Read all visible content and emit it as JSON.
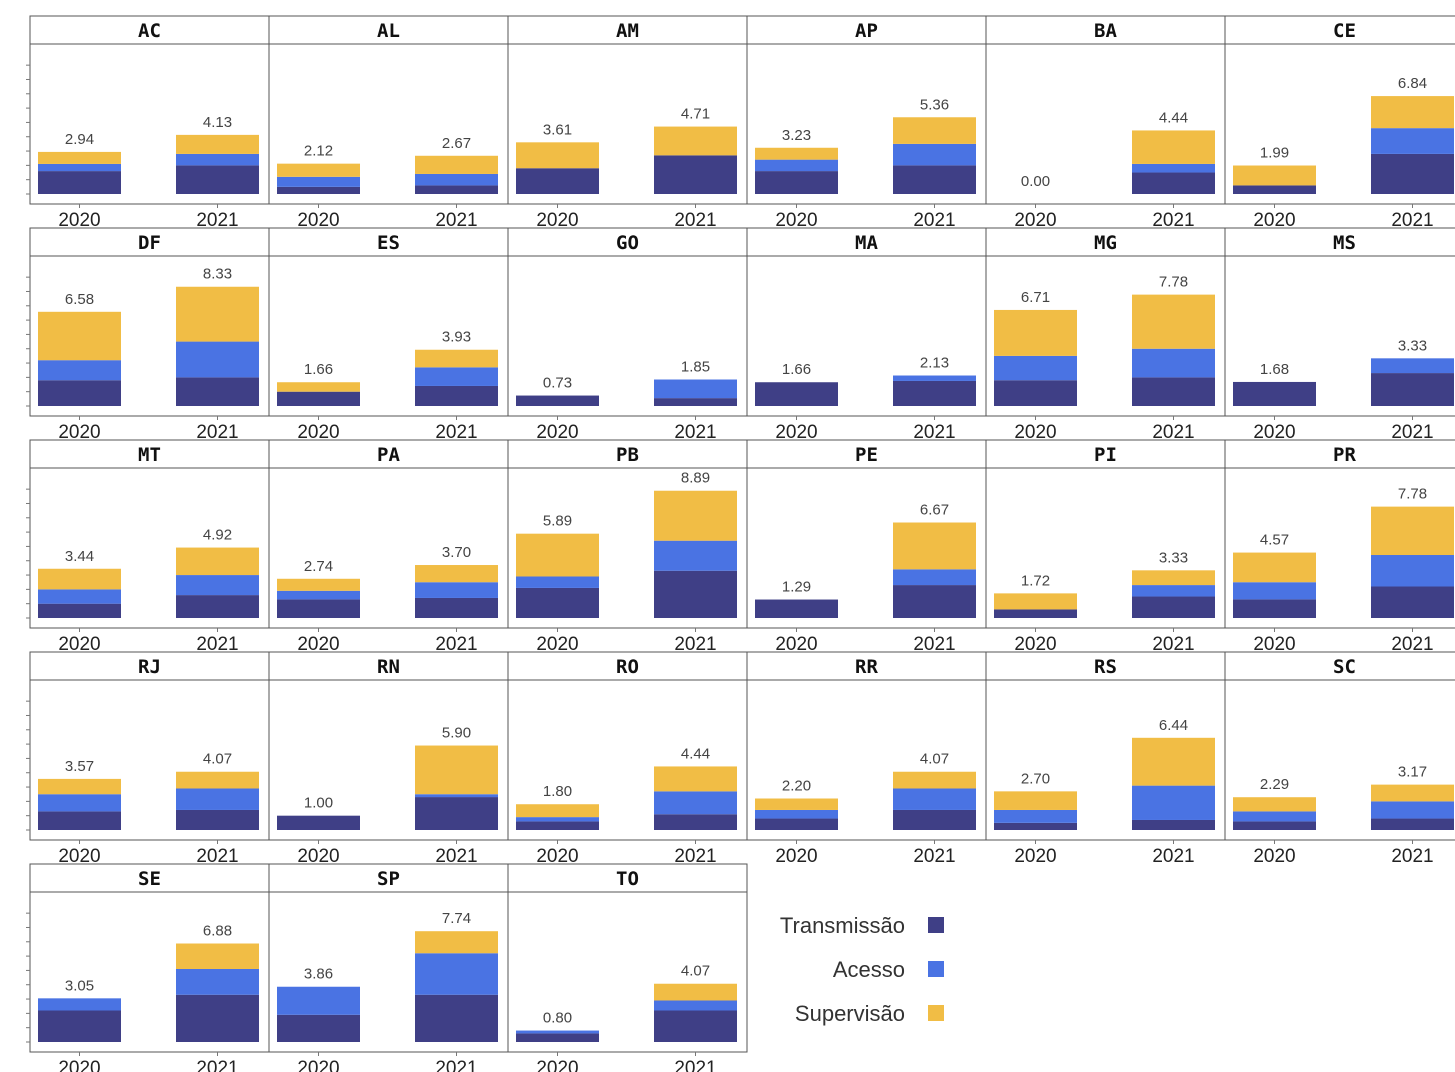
{
  "chart_data": {
    "type": "bar",
    "stacked": true,
    "facets_layout": "grid 6 columns x 5 rows",
    "x": [
      "2020",
      "2021"
    ],
    "ylim": [
      0,
      9.5
    ],
    "series_names": [
      "Transmissão",
      "Acesso",
      "Supervisão"
    ],
    "colors": {
      "Transmissão": "#3f3f86",
      "Acesso": "#4a73e3",
      "Supervisão": "#f1bd45"
    },
    "legend_position": "bottom-right",
    "facets": [
      {
        "name": "AC",
        "totals": [
          "2.94",
          "4.13"
        ],
        "transmissao": [
          1.6,
          2.0
        ],
        "acesso": [
          0.5,
          0.8
        ],
        "supervisao": [
          0.84,
          1.33
        ]
      },
      {
        "name": "AL",
        "totals": [
          "2.12",
          "2.67"
        ],
        "transmissao": [
          0.5,
          0.6
        ],
        "acesso": [
          0.7,
          0.8
        ],
        "supervisao": [
          0.92,
          1.27
        ]
      },
      {
        "name": "AM",
        "totals": [
          "3.61",
          "4.71"
        ],
        "transmissao": [
          1.8,
          2.7
        ],
        "acesso": [
          0.0,
          0.0
        ],
        "supervisao": [
          1.81,
          2.01
        ]
      },
      {
        "name": "AP",
        "totals": [
          "3.23",
          "5.36"
        ],
        "transmissao": [
          1.6,
          2.0
        ],
        "acesso": [
          0.8,
          1.5
        ],
        "supervisao": [
          0.83,
          1.86
        ]
      },
      {
        "name": "BA",
        "totals": [
          "0.00",
          "4.44"
        ],
        "transmissao": [
          0,
          1.5
        ],
        "acesso": [
          0,
          0.6
        ],
        "supervisao": [
          0,
          2.34
        ]
      },
      {
        "name": "CE",
        "totals": [
          "1.99",
          "6.84"
        ],
        "transmissao": [
          0.6,
          2.8
        ],
        "acesso": [
          0.0,
          1.8
        ],
        "supervisao": [
          1.39,
          2.24
        ]
      },
      {
        "name": "DF",
        "totals": [
          "6.58",
          "8.33"
        ],
        "transmissao": [
          1.8,
          2.0
        ],
        "acesso": [
          1.4,
          2.5
        ],
        "supervisao": [
          3.38,
          3.83
        ]
      },
      {
        "name": "ES",
        "totals": [
          "1.66",
          "3.93"
        ],
        "transmissao": [
          1.0,
          1.4
        ],
        "acesso": [
          0.0,
          1.3
        ],
        "supervisao": [
          0.66,
          1.23
        ]
      },
      {
        "name": "GO",
        "totals": [
          "0.73",
          "1.85"
        ],
        "transmissao": [
          0.73,
          0.55
        ],
        "acesso": [
          0.0,
          1.3
        ],
        "supervisao": [
          0,
          0
        ]
      },
      {
        "name": "MA",
        "totals": [
          "1.66",
          "2.13"
        ],
        "transmissao": [
          1.66,
          1.75
        ],
        "acesso": [
          0,
          0.38
        ],
        "supervisao": [
          0,
          0
        ]
      },
      {
        "name": "MG",
        "totals": [
          "6.71",
          "7.78"
        ],
        "transmissao": [
          1.8,
          2.0
        ],
        "acesso": [
          1.7,
          2.0
        ],
        "supervisao": [
          3.21,
          3.78
        ]
      },
      {
        "name": "MS",
        "totals": [
          "1.68",
          "3.33"
        ],
        "transmissao": [
          1.68,
          2.3
        ],
        "acesso": [
          0,
          1.03
        ],
        "supervisao": [
          0,
          0
        ]
      },
      {
        "name": "MT",
        "totals": [
          "3.44",
          "4.92"
        ],
        "transmissao": [
          1.0,
          1.6
        ],
        "acesso": [
          1.0,
          1.4
        ],
        "supervisao": [
          1.44,
          1.92
        ]
      },
      {
        "name": "PA",
        "totals": [
          "2.74",
          "3.70"
        ],
        "transmissao": [
          1.3,
          1.4
        ],
        "acesso": [
          0.6,
          1.1
        ],
        "supervisao": [
          0.84,
          1.2
        ]
      },
      {
        "name": "PB",
        "totals": [
          "5.89",
          "8.89"
        ],
        "transmissao": [
          2.1,
          3.3
        ],
        "acesso": [
          0.8,
          2.1
        ],
        "supervisao": [
          2.99,
          3.49
        ]
      },
      {
        "name": "PE",
        "totals": [
          "1.29",
          "6.67"
        ],
        "transmissao": [
          1.29,
          2.3
        ],
        "acesso": [
          0,
          1.1
        ],
        "supervisao": [
          0,
          3.27
        ]
      },
      {
        "name": "PI",
        "totals": [
          "1.72",
          "3.33"
        ],
        "transmissao": [
          0.6,
          1.5
        ],
        "acesso": [
          0,
          0.8
        ],
        "supervisao": [
          1.12,
          1.03
        ]
      },
      {
        "name": "PR",
        "totals": [
          "4.57",
          "7.78"
        ],
        "transmissao": [
          1.3,
          2.2
        ],
        "acesso": [
          1.2,
          2.2
        ],
        "supervisao": [
          2.07,
          3.38
        ]
      },
      {
        "name": "RJ",
        "totals": [
          "3.57",
          "4.07"
        ],
        "transmissao": [
          1.3,
          1.4
        ],
        "acesso": [
          1.2,
          1.5
        ],
        "supervisao": [
          1.07,
          1.17
        ]
      },
      {
        "name": "RN",
        "totals": [
          "1.00",
          "5.90"
        ],
        "transmissao": [
          1.0,
          2.3
        ],
        "acesso": [
          0,
          0.2
        ],
        "supervisao": [
          0,
          3.4
        ]
      },
      {
        "name": "RO",
        "totals": [
          "1.80",
          "4.44"
        ],
        "transmissao": [
          0.6,
          1.1
        ],
        "acesso": [
          0.3,
          1.6
        ],
        "supervisao": [
          0.9,
          1.74
        ]
      },
      {
        "name": "RR",
        "totals": [
          "2.20",
          "4.07"
        ],
        "transmissao": [
          0.8,
          1.4
        ],
        "acesso": [
          0.6,
          1.5
        ],
        "supervisao": [
          0.8,
          1.17
        ]
      },
      {
        "name": "RS",
        "totals": [
          "2.70",
          "6.44"
        ],
        "transmissao": [
          0.5,
          0.7
        ],
        "acesso": [
          0.9,
          2.4
        ],
        "supervisao": [
          1.3,
          3.34
        ]
      },
      {
        "name": "SC",
        "totals": [
          "2.29",
          "3.17"
        ],
        "transmissao": [
          0.6,
          0.8
        ],
        "acesso": [
          0.7,
          1.2
        ],
        "supervisao": [
          0.99,
          1.17
        ]
      },
      {
        "name": "SE",
        "totals": [
          "3.05",
          "6.88"
        ],
        "transmissao": [
          2.2,
          3.3
        ],
        "acesso": [
          0.85,
          1.8
        ],
        "supervisao": [
          0,
          1.78
        ]
      },
      {
        "name": "SP",
        "totals": [
          "3.86",
          "7.74"
        ],
        "transmissao": [
          1.9,
          3.3
        ],
        "acesso": [
          1.96,
          2.9
        ],
        "supervisao": [
          0,
          1.54
        ]
      },
      {
        "name": "TO",
        "totals": [
          "0.80",
          "4.07"
        ],
        "transmissao": [
          0.6,
          2.2
        ],
        "acesso": [
          0.2,
          0.7
        ],
        "supervisao": [
          0,
          1.17
        ]
      }
    ]
  }
}
